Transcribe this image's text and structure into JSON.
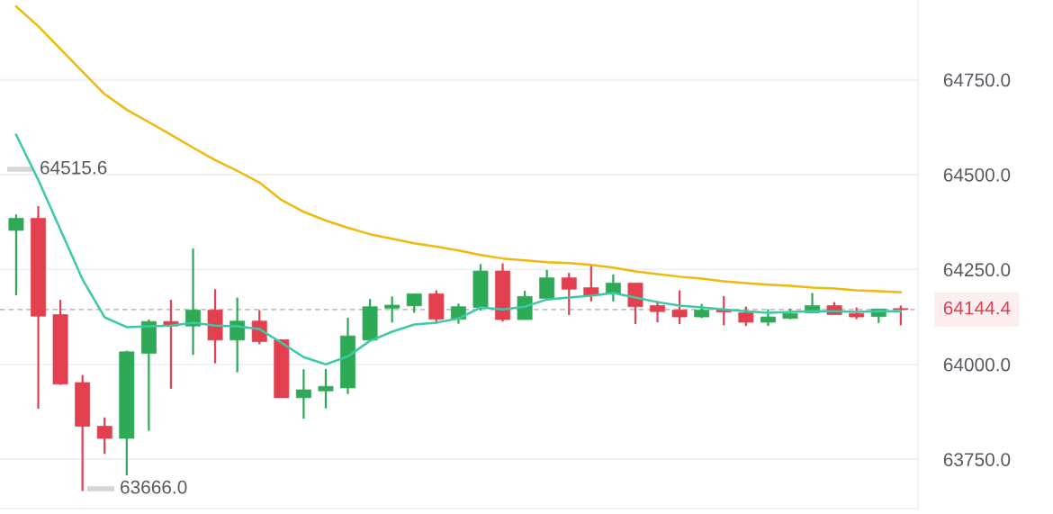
{
  "chart_data": {
    "type": "candlestick",
    "categories": [
      null,
      null,
      null,
      null,
      null,
      null,
      null,
      null,
      null,
      null,
      null,
      null,
      null,
      null,
      null,
      null,
      null,
      null,
      null,
      null,
      null,
      null,
      null,
      null,
      null,
      null,
      null,
      null,
      null,
      null,
      null,
      null,
      null,
      null,
      null,
      null,
      null,
      null,
      null,
      null,
      null
    ],
    "ohlc": [
      [
        64353,
        64395,
        64182,
        64385
      ],
      [
        64385,
        64417,
        63883,
        64127
      ],
      [
        64131,
        64170,
        63946,
        63948
      ],
      [
        63952,
        63972,
        63666,
        63837
      ],
      [
        63837,
        63860,
        63764,
        63805
      ],
      [
        63805,
        64036,
        63708,
        64033
      ],
      [
        64029,
        64118,
        63825,
        64113
      ],
      [
        64113,
        64170,
        63936,
        64101
      ],
      [
        64101,
        64305,
        64025,
        64143
      ],
      [
        64143,
        64198,
        64003,
        64064
      ],
      [
        64064,
        64176,
        63979,
        64114
      ],
      [
        64114,
        64143,
        64053,
        64060
      ],
      [
        64065,
        64065,
        63912,
        63912
      ],
      [
        63912,
        63987,
        63857,
        63933
      ],
      [
        63930,
        63988,
        63884,
        63942
      ],
      [
        63938,
        64123,
        63922,
        64075
      ],
      [
        64064,
        64172,
        64063,
        64152
      ],
      [
        64148,
        64179,
        64110,
        64156
      ],
      [
        64154,
        64186,
        64136,
        64186
      ],
      [
        64186,
        64195,
        64107,
        64119
      ],
      [
        64119,
        64160,
        64107,
        64152
      ],
      [
        64150,
        64264,
        64142,
        64246
      ],
      [
        64246,
        64266,
        64113,
        64118
      ],
      [
        64118,
        64194,
        64118,
        64179
      ],
      [
        64174,
        64249,
        64174,
        64228
      ],
      [
        64228,
        64241,
        64130,
        64198
      ],
      [
        64202,
        64261,
        64166,
        64182
      ],
      [
        64186,
        64237,
        64166,
        64214
      ],
      [
        64214,
        64214,
        64106,
        64152
      ],
      [
        64155,
        64167,
        64111,
        64139
      ],
      [
        64143,
        64195,
        64106,
        64125
      ],
      [
        64125,
        64159,
        64122,
        64143
      ],
      [
        64143,
        64180,
        64103,
        64138
      ],
      [
        64136,
        64152,
        64101,
        64111
      ],
      [
        64111,
        64145,
        64101,
        64125
      ],
      [
        64121,
        64147,
        64119,
        64134
      ],
      [
        64136,
        64188,
        64136,
        64155
      ],
      [
        64155,
        64164,
        64131,
        64131
      ],
      [
        64134,
        64150,
        64119,
        64125
      ],
      [
        64126,
        64146,
        64109,
        64146
      ],
      [
        64147,
        64155,
        64103,
        64144.4
      ]
    ],
    "colors": [
      "#2eaa57",
      "#e2404f",
      "#e2404f",
      "#e2404f",
      "#e2404f",
      "#2eaa57",
      "#2eaa57",
      "#e2404f",
      "#2eaa57",
      "#e2404f",
      "#2eaa57",
      "#e2404f",
      "#e2404f",
      "#2eaa57",
      "#2eaa57",
      "#2eaa57",
      "#2eaa57",
      "#2eaa57",
      "#2eaa57",
      "#e2404f",
      "#2eaa57",
      "#2eaa57",
      "#e2404f",
      "#2eaa57",
      "#2eaa57",
      "#e2404f",
      "#e2404f",
      "#2eaa57",
      "#e2404f",
      "#e2404f",
      "#e2404f",
      "#2eaa57",
      "#e2404f",
      "#e2404f",
      "#2eaa57",
      "#2eaa57",
      "#2eaa57",
      "#e2404f",
      "#e2404f",
      "#2eaa57",
      "#e2404f"
    ],
    "series": [
      {
        "type": "line",
        "color": "#f0b90b",
        "values": [
          64943,
          64891,
          64831,
          64771,
          64712,
          64671,
          64638,
          64605,
          64571,
          64538,
          64510,
          64479,
          64433,
          64402,
          64379,
          64360,
          64343,
          64331,
          64319,
          64310,
          64300,
          64288,
          64279,
          64274,
          64269,
          64267,
          64262,
          64255,
          64245,
          64238,
          64231,
          64226,
          64219,
          64214,
          64210,
          64207,
          64202,
          64200,
          64195,
          64193,
          64190
        ]
      },
      {
        "type": "line",
        "color": "#3ccaa6",
        "values": [
          64605,
          64486,
          64355,
          64224,
          64124,
          64098,
          64100,
          64102,
          64110,
          64102,
          64100,
          64093,
          64057,
          64019,
          64000,
          64021,
          64062,
          64086,
          64105,
          64110,
          64121,
          64150,
          64145,
          64152,
          64171,
          64176,
          64181,
          64188,
          64176,
          64164,
          64155,
          64150,
          64145,
          64140,
          64136,
          64138,
          64140,
          64140,
          64138,
          64140,
          64140
        ]
      }
    ],
    "ylim": [
      63620,
      64960
    ],
    "yticks": [
      {
        "value": 63750,
        "label": "63750.0"
      },
      {
        "value": 64000,
        "label": "64000.0"
      },
      {
        "value": 64250,
        "label": "64250.0"
      },
      {
        "value": 64500,
        "label": "64500.0"
      },
      {
        "value": 64750,
        "label": "64750.0"
      }
    ],
    "grid": "y",
    "ref_lines": [
      {
        "axis": "y",
        "value": 64144.4,
        "label": "64144.4",
        "color": "#aaaaaa",
        "line_style": "dashed"
      }
    ],
    "annotations": [
      "64515.6",
      "63666.0"
    ]
  }
}
